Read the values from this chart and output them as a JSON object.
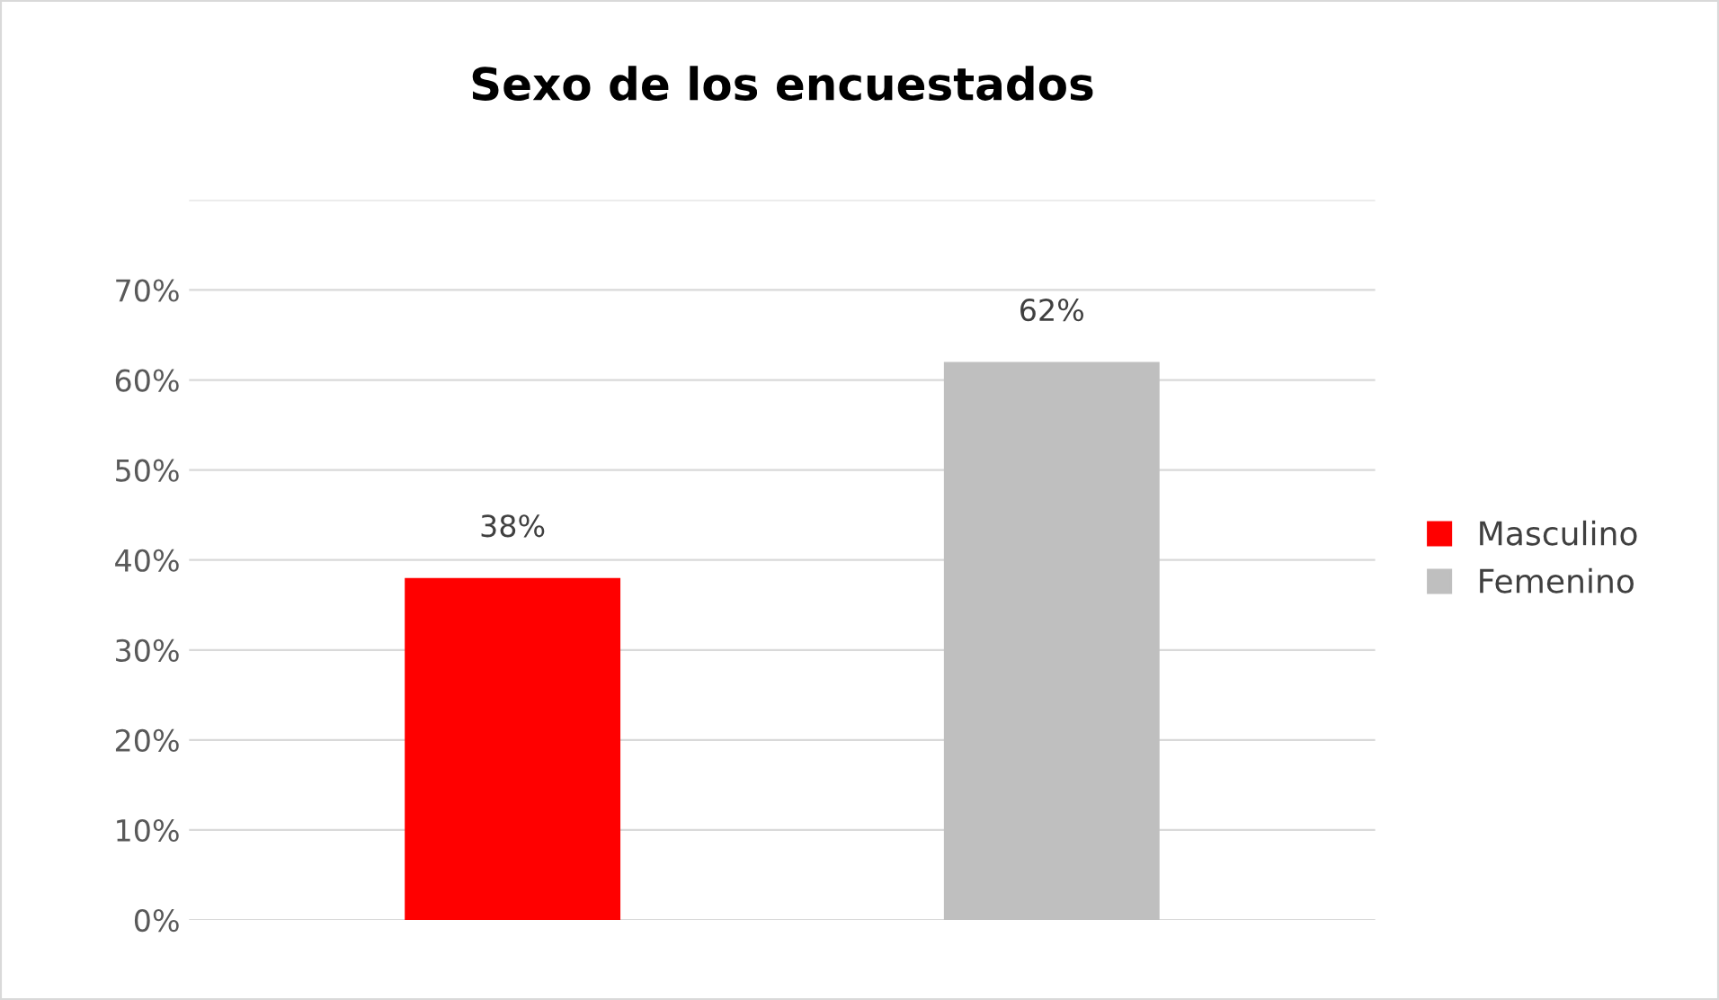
{
  "chart_data": {
    "type": "bar",
    "title": "Sexo de los encuestados",
    "categories": [
      null,
      null
    ],
    "series": [
      {
        "name": "Masculino",
        "color": "#ff0000",
        "values": [
          38,
          null
        ],
        "value_labels": [
          "38%",
          null
        ]
      },
      {
        "name": "Femenino",
        "color": "#bfbfbf",
        "values": [
          null,
          62
        ],
        "value_labels": [
          null,
          "62%"
        ]
      }
    ],
    "ylim": [
      0,
      80
    ],
    "yticks": [
      {
        "value": 0,
        "label": "0%"
      },
      {
        "value": 10,
        "label": "10%"
      },
      {
        "value": 20,
        "label": "20%"
      },
      {
        "value": 30,
        "label": "30%"
      },
      {
        "value": 40,
        "label": "40%"
      },
      {
        "value": 50,
        "label": "50%"
      },
      {
        "value": 60,
        "label": "60%"
      },
      {
        "value": 70,
        "label": "70%"
      },
      {
        "value": 80,
        "label": null
      }
    ],
    "grid": "y",
    "legend": "right",
    "tick_labels": "y"
  }
}
